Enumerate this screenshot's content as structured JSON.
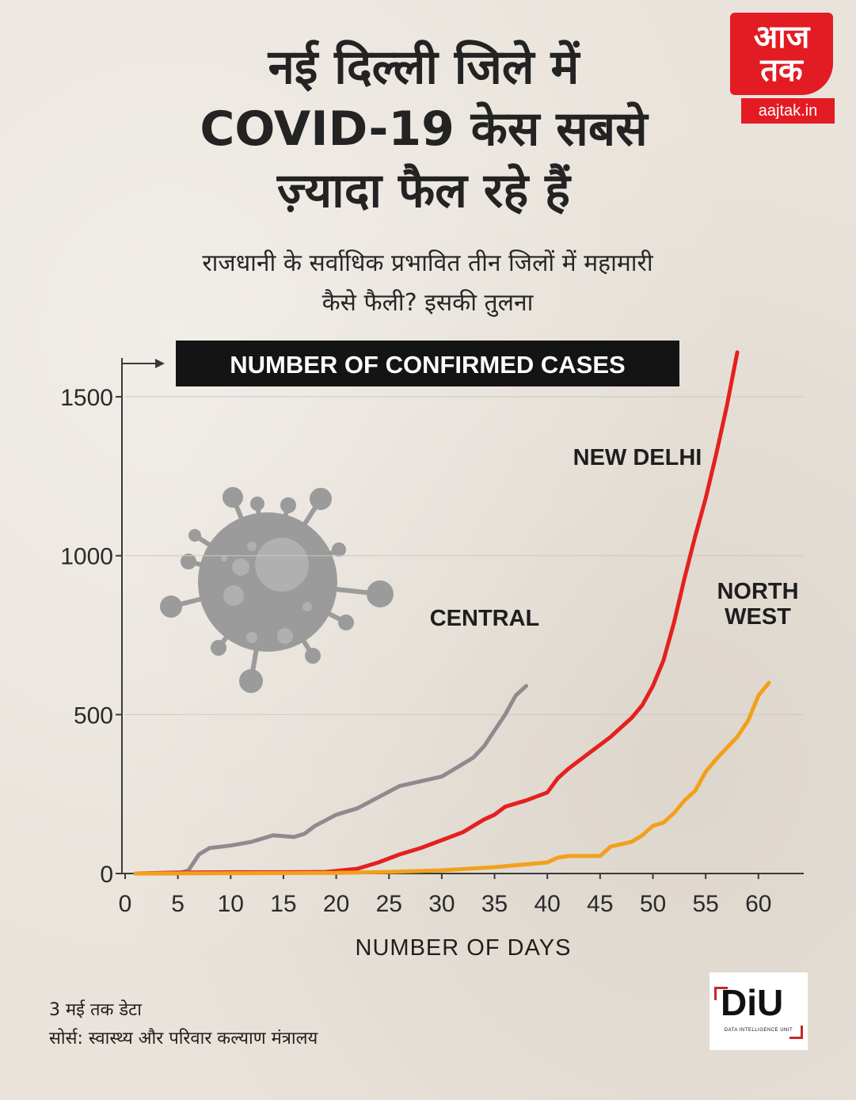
{
  "header": {
    "title_lines": [
      "नई दिल्ली जिले में",
      "COVID-19 केस सबसे",
      "ज़्यादा फैल रहे हैं"
    ],
    "subtitle_lines": [
      "राजधानी के सर्वाधिक प्रभावित तीन जिलों में महामारी",
      "कैसे फैली? इसकी तुलना"
    ]
  },
  "logo": {
    "mark_line1": "आज",
    "mark_line2": "तक",
    "site": "aajtak.in"
  },
  "footer": {
    "note": "3 मई तक डेटा",
    "source": "सोर्स: स्वास्थ्य और परिवार कल्याण मंत्रालय",
    "diu_mark": "DiU",
    "diu_caption": "DATA INTELLIGENCE UNIT"
  },
  "colors": {
    "new_delhi": "#e3211f",
    "central": "#8f8a8f",
    "north_west": "#f2a01c",
    "axis": "#3a3a3a",
    "grid": "#cfc8bf",
    "virus": "#9b9b9b"
  },
  "chart_data": {
    "type": "line",
    "title": "NUMBER OF CONFIRMED CASES",
    "xlabel": "NUMBER OF DAYS",
    "ylabel": "NUMBER OF CONFIRMED CASES",
    "xlim": [
      0,
      63
    ],
    "ylim": [
      0,
      1650
    ],
    "xticks": [
      0,
      5,
      10,
      15,
      20,
      25,
      30,
      35,
      40,
      45,
      50,
      55,
      60
    ],
    "yticks": [
      0,
      500,
      1000,
      1500
    ],
    "series": [
      {
        "name": "CENTRAL",
        "label_lines": [
          "CENTRAL"
        ],
        "x": [
          1,
          3,
          5,
          6,
          7,
          8,
          10,
          12,
          14,
          16,
          17,
          18,
          20,
          22,
          24,
          26,
          28,
          30,
          32,
          33,
          34,
          35,
          36,
          37,
          38
        ],
        "y": [
          0,
          0,
          0,
          10,
          60,
          80,
          88,
          100,
          120,
          115,
          125,
          150,
          185,
          205,
          240,
          275,
          290,
          305,
          345,
          365,
          400,
          450,
          500,
          560,
          590
        ]
      },
      {
        "name": "NEW DELHI",
        "label_lines": [
          "NEW DELHI"
        ],
        "x": [
          1,
          5,
          10,
          15,
          19,
          20,
          22,
          24,
          26,
          28,
          30,
          32,
          34,
          35,
          36,
          38,
          40,
          41,
          42,
          44,
          46,
          48,
          49,
          50,
          51,
          52,
          53,
          54,
          55,
          56,
          57,
          58
        ],
        "y": [
          0,
          3,
          4,
          4,
          5,
          8,
          15,
          35,
          60,
          80,
          105,
          130,
          170,
          185,
          210,
          230,
          255,
          300,
          330,
          380,
          430,
          490,
          530,
          590,
          670,
          790,
          930,
          1060,
          1180,
          1320,
          1470,
          1640
        ]
      },
      {
        "name": "NORTH WEST",
        "label_lines": [
          "NORTH",
          "WEST"
        ],
        "x": [
          1,
          10,
          20,
          25,
          30,
          35,
          40,
          41,
          42,
          45,
          46,
          48,
          49,
          50,
          51,
          52,
          53,
          54,
          55,
          56,
          58,
          59,
          60,
          61
        ],
        "y": [
          0,
          1,
          2,
          5,
          10,
          20,
          35,
          50,
          55,
          55,
          85,
          100,
          120,
          150,
          160,
          190,
          230,
          260,
          320,
          360,
          430,
          480,
          560,
          600
        ]
      }
    ]
  }
}
